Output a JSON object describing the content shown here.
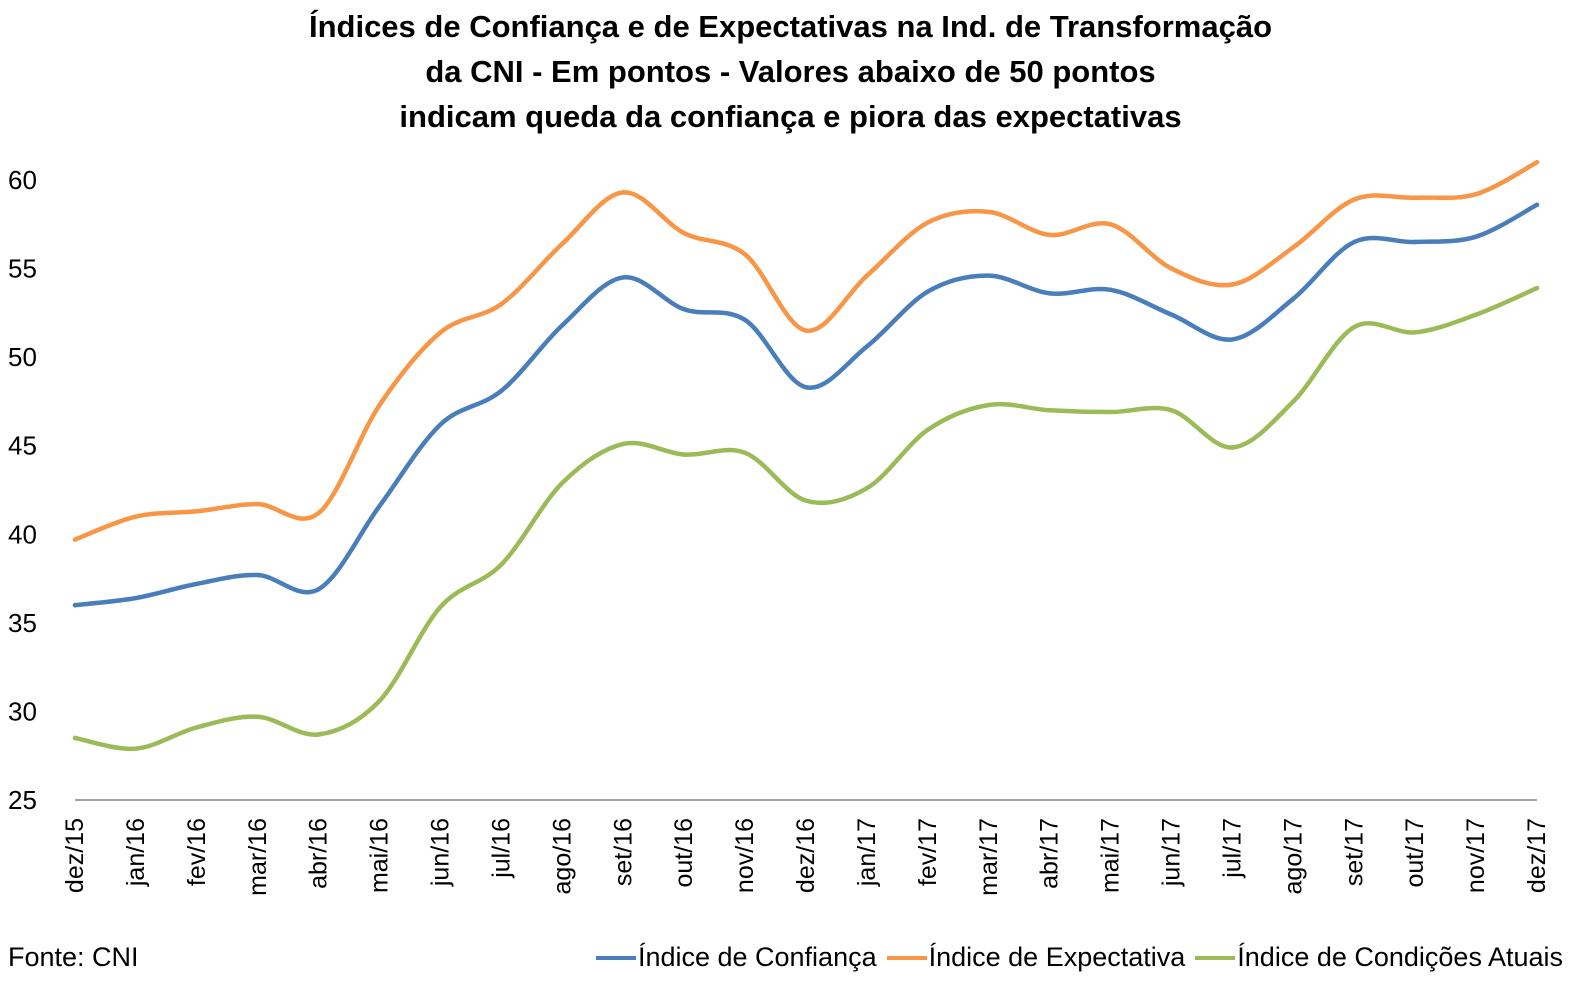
{
  "chart_data": {
    "type": "line",
    "title_lines": [
      "Índices de Confiança e de Expectativas na Ind. de Transformação",
      "da CNI - Em pontos - Valores abaixo de 50 pontos",
      "indicam queda da confiança e piora das expectativas"
    ],
    "categories": [
      "dez/15",
      "jan/16",
      "fev/16",
      "mar/16",
      "abr/16",
      "mai/16",
      "jun/16",
      "jul/16",
      "ago/16",
      "set/16",
      "out/16",
      "nov/16",
      "dez/16",
      "jan/17",
      "fev/17",
      "mar/17",
      "abr/17",
      "mai/17",
      "jun/17",
      "jul/17",
      "ago/17",
      "set/17",
      "out/17",
      "nov/17",
      "dez/17"
    ],
    "ylim": [
      25,
      62
    ],
    "yticks": [
      25,
      30,
      35,
      40,
      45,
      50,
      55,
      60
    ],
    "series": [
      {
        "name": "Índice de Confiança",
        "color": "#4a7ebb",
        "values": [
          36.0,
          36.4,
          37.2,
          37.7,
          36.9,
          41.6,
          46.2,
          48.1,
          51.8,
          54.5,
          52.7,
          52.1,
          48.3,
          50.6,
          53.7,
          54.6,
          53.6,
          53.8,
          52.4,
          51.0,
          53.3,
          56.5,
          56.5,
          56.8,
          58.6
        ]
      },
      {
        "name": "Índice de Expectativa",
        "color": "#f79646",
        "values": [
          39.7,
          41.0,
          41.3,
          41.7,
          41.2,
          47.3,
          51.4,
          53.0,
          56.4,
          59.3,
          57.0,
          55.8,
          51.5,
          54.6,
          57.6,
          58.2,
          56.9,
          57.5,
          55.0,
          54.1,
          56.2,
          58.9,
          59.0,
          59.2,
          61.0
        ]
      },
      {
        "name": "Índice de Condições Atuais",
        "color": "#9bbb59",
        "values": [
          28.5,
          27.9,
          29.1,
          29.7,
          28.7,
          30.6,
          35.9,
          38.3,
          42.9,
          45.1,
          44.5,
          44.6,
          41.9,
          42.6,
          45.9,
          47.3,
          47.0,
          46.9,
          47.0,
          44.9,
          47.5,
          51.7,
          51.4,
          52.4,
          53.9
        ]
      }
    ],
    "grid": false,
    "legend_position": "bottom-right",
    "source": "Fonte: CNI"
  }
}
